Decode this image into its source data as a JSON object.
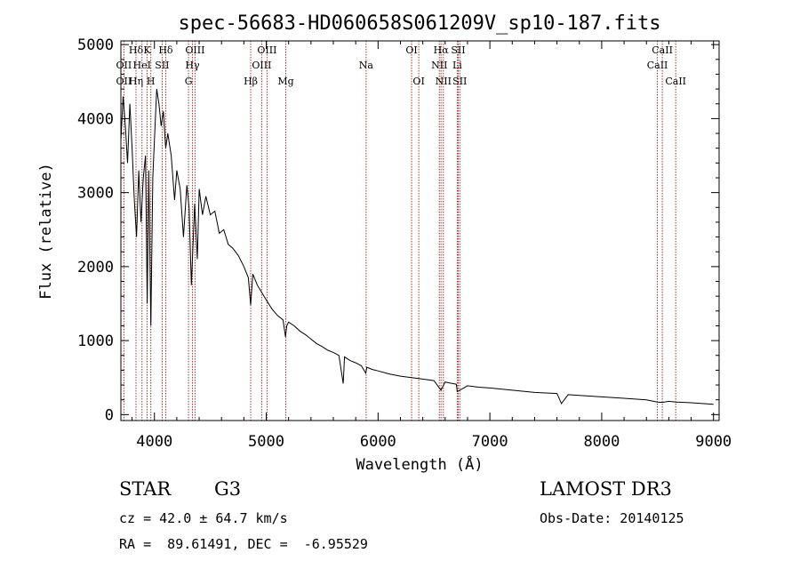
{
  "chart_data": {
    "type": "line",
    "title": "spec-56683-HD060658S061209V_sp10-187.fits",
    "xlabel": "Wavelength (Å)",
    "ylabel": "Flux (relative)",
    "xlim": [
      3700,
      9050
    ],
    "ylim": [
      -80,
      5050
    ],
    "xticks": [
      4000,
      5000,
      6000,
      7000,
      8000,
      9000
    ],
    "xtick_labels": [
      "4000",
      "5000",
      "6000",
      "7000",
      "8000",
      "9000"
    ],
    "yticks": [
      0,
      1000,
      2000,
      3000,
      4000,
      5000
    ],
    "ytick_labels": [
      "0",
      "1000",
      "2000",
      "3000",
      "4000",
      "5000"
    ],
    "series": [
      {
        "name": "flux",
        "x": [
          3700,
          3720,
          3740,
          3760,
          3780,
          3800,
          3820,
          3840,
          3860,
          3880,
          3900,
          3920,
          3935,
          3950,
          3968,
          3985,
          4000,
          4020,
          4040,
          4060,
          4080,
          4101,
          4120,
          4150,
          4180,
          4200,
          4230,
          4260,
          4290,
          4310,
          4330,
          4340,
          4360,
          4384,
          4400,
          4430,
          4460,
          4500,
          4540,
          4580,
          4620,
          4660,
          4700,
          4750,
          4800,
          4840,
          4861,
          4880,
          4920,
          4960,
          5000,
          5050,
          5100,
          5150,
          5172,
          5183,
          5200,
          5250,
          5300,
          5350,
          5400,
          5450,
          5500,
          5550,
          5600,
          5650,
          5688,
          5700,
          5750,
          5800,
          5850,
          5890,
          5900,
          5950,
          6000,
          6100,
          6200,
          6300,
          6400,
          6500,
          6563,
          6600,
          6700,
          6708,
          6800,
          6900,
          7000,
          7200,
          7400,
          7600,
          7640,
          7700,
          7800,
          8000,
          8200,
          8400,
          8498,
          8542,
          8600,
          8662,
          8800,
          9000
        ],
        "y": [
          3700,
          4300,
          3900,
          3400,
          4200,
          3600,
          2900,
          2400,
          3300,
          2600,
          3200,
          3500,
          1500,
          3300,
          1200,
          3200,
          3700,
          4400,
          4200,
          3900,
          4100,
          3600,
          3800,
          3500,
          2900,
          3300,
          3050,
          2400,
          3100,
          2800,
          1750,
          2100,
          2850,
          2100,
          3050,
          2700,
          2950,
          2700,
          2750,
          2450,
          2500,
          2300,
          2250,
          2150,
          2000,
          1850,
          1480,
          1900,
          1750,
          1650,
          1550,
          1430,
          1340,
          1280,
          1050,
          1200,
          1250,
          1200,
          1130,
          1080,
          1020,
          960,
          920,
          870,
          840,
          800,
          420,
          780,
          730,
          700,
          660,
          560,
          640,
          610,
          590,
          550,
          520,
          500,
          480,
          460,
          330,
          440,
          410,
          310,
          390,
          370,
          360,
          330,
          300,
          285,
          150,
          270,
          260,
          240,
          220,
          200,
          170,
          165,
          180,
          170,
          160,
          140
        ]
      }
    ],
    "lines": [
      {
        "name": "Hδ",
        "wl": 3835,
        "row": 0
      },
      {
        "name": "OII",
        "wl": 3727,
        "row": 1
      },
      {
        "name": "OII",
        "wl": 3727,
        "row": 2
      },
      {
        "name": "K",
        "wl": 3934,
        "row": 0
      },
      {
        "name": "HeI",
        "wl": 3889,
        "row": 1
      },
      {
        "name": "SII",
        "wl": 4069,
        "row": 1
      },
      {
        "name": "Hη",
        "wl": 3835,
        "row": 2
      },
      {
        "name": "H",
        "wl": 3968,
        "row": 2
      },
      {
        "name": "Hδ",
        "wl": 4101,
        "row": 0
      },
      {
        "name": "OIII",
        "wl": 4363,
        "row": 0
      },
      {
        "name": "Hγ",
        "wl": 4340,
        "row": 1
      },
      {
        "name": "G",
        "wl": 4305,
        "row": 2
      },
      {
        "name": "Hβ",
        "wl": 4861,
        "row": 2
      },
      {
        "name": "OIII",
        "wl": 5007,
        "row": 0
      },
      {
        "name": "OIII",
        "wl": 4959,
        "row": 1
      },
      {
        "name": "Mg",
        "wl": 5175,
        "row": 2
      },
      {
        "name": "Na",
        "wl": 5893,
        "row": 1
      },
      {
        "name": "OI",
        "wl": 6300,
        "row": 0
      },
      {
        "name": "OI",
        "wl": 6364,
        "row": 2
      },
      {
        "name": "Hα",
        "wl": 6563,
        "row": 0
      },
      {
        "name": "NII",
        "wl": 6548,
        "row": 1
      },
      {
        "name": "NII",
        "wl": 6584,
        "row": 2
      },
      {
        "name": "SII",
        "wl": 6717,
        "row": 0
      },
      {
        "name": "Li",
        "wl": 6708,
        "row": 1
      },
      {
        "name": "SII",
        "wl": 6731,
        "row": 2
      },
      {
        "name": "CaII",
        "wl": 8542,
        "row": 0
      },
      {
        "name": "CaII",
        "wl": 8498,
        "row": 1
      },
      {
        "name": "CaII",
        "wl": 8662,
        "row": 2
      }
    ],
    "line_color": "#a83232"
  },
  "info": {
    "class": "STAR",
    "subclass": "G3",
    "survey": "LAMOST DR3",
    "cz": "cz = 42.0 ± 64.7 km/s",
    "obs_date": "Obs-Date: 20140125",
    "radec": "RA =  89.61491, DEC =  -6.95529"
  }
}
